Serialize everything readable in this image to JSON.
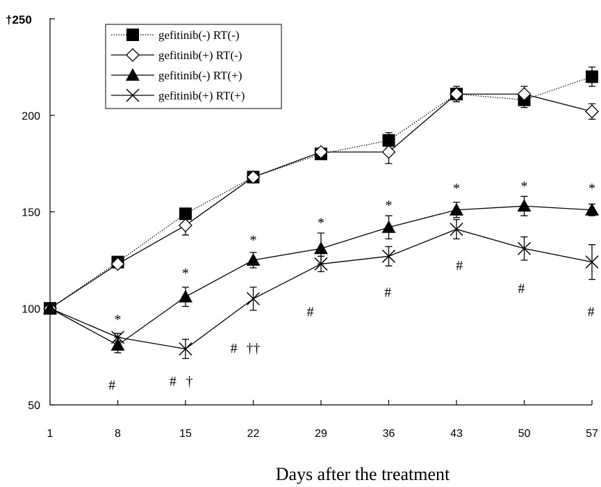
{
  "chart_data": {
    "type": "line",
    "title": "",
    "xlabel": "Days after the treatment",
    "ylabel": "",
    "x": [
      1,
      8,
      15,
      22,
      29,
      36,
      43,
      50,
      57
    ],
    "xticks": [
      "1",
      "8",
      "15",
      "22",
      "29",
      "36",
      "43",
      "50",
      "57"
    ],
    "yticks": [
      "50",
      "100",
      "150",
      "200"
    ],
    "ytick_values": [
      50,
      100,
      150,
      200
    ],
    "y_top_label": "†250",
    "ylim": [
      50,
      250
    ],
    "grid": false,
    "legend_position": "top-left",
    "series": [
      {
        "name": "gefitinib(-) RT(-)",
        "marker": "filled-square",
        "line": "dotted",
        "values": [
          100,
          124,
          149,
          168,
          180,
          187,
          211,
          208,
          220
        ],
        "errors": [
          0,
          2,
          2,
          2,
          2,
          4,
          4,
          4,
          5
        ]
      },
      {
        "name": "gefitinib(+) RT(-)",
        "marker": "open-diamond",
        "line": "solid",
        "values": [
          100,
          123,
          143,
          168,
          181,
          181,
          211,
          211,
          202
        ],
        "errors": [
          0,
          2,
          5,
          2,
          2,
          6,
          3,
          4,
          4
        ]
      },
      {
        "name": "gefitinib(-) RT(+)",
        "marker": "filled-triangle",
        "line": "solid",
        "values": [
          100,
          81,
          106,
          125,
          131,
          142,
          151,
          153,
          151
        ],
        "errors": [
          0,
          4,
          5,
          4,
          8,
          6,
          4,
          5,
          3
        ]
      },
      {
        "name": "gefitinib(+) RT(+)",
        "marker": "x",
        "line": "solid",
        "values": [
          100,
          85,
          79,
          105,
          123,
          127,
          141,
          131,
          124
        ],
        "errors": [
          0,
          2,
          5,
          6,
          4,
          5,
          5,
          6,
          9
        ]
      }
    ],
    "annotations": [
      {
        "text": "*",
        "x": 8,
        "y": 92
      },
      {
        "text": "*",
        "x": 15,
        "y": 116
      },
      {
        "text": "*",
        "x": 22,
        "y": 133
      },
      {
        "text": "*",
        "x": 29,
        "y": 142
      },
      {
        "text": "*",
        "x": 36,
        "y": 151
      },
      {
        "text": "*",
        "x": 43,
        "y": 160
      },
      {
        "text": "*",
        "x": 50,
        "y": 161
      },
      {
        "text": "*",
        "x": 57,
        "y": 160
      },
      {
        "text": "#",
        "x": 7.4,
        "y": 58
      },
      {
        "text": "#",
        "x": 13.7,
        "y": 60
      },
      {
        "text": "†",
        "x": 15.4,
        "y": 60
      },
      {
        "text": "#",
        "x": 20.0,
        "y": 77
      },
      {
        "text": "††",
        "x": 22.0,
        "y": 77
      },
      {
        "text": "#",
        "x": 27.9,
        "y": 96
      },
      {
        "text": "#",
        "x": 35.9,
        "y": 106
      },
      {
        "text": "#",
        "x": 43.3,
        "y": 120
      },
      {
        "text": "#",
        "x": 49.7,
        "y": 108
      },
      {
        "text": "#",
        "x": 56.9,
        "y": 96
      }
    ]
  }
}
